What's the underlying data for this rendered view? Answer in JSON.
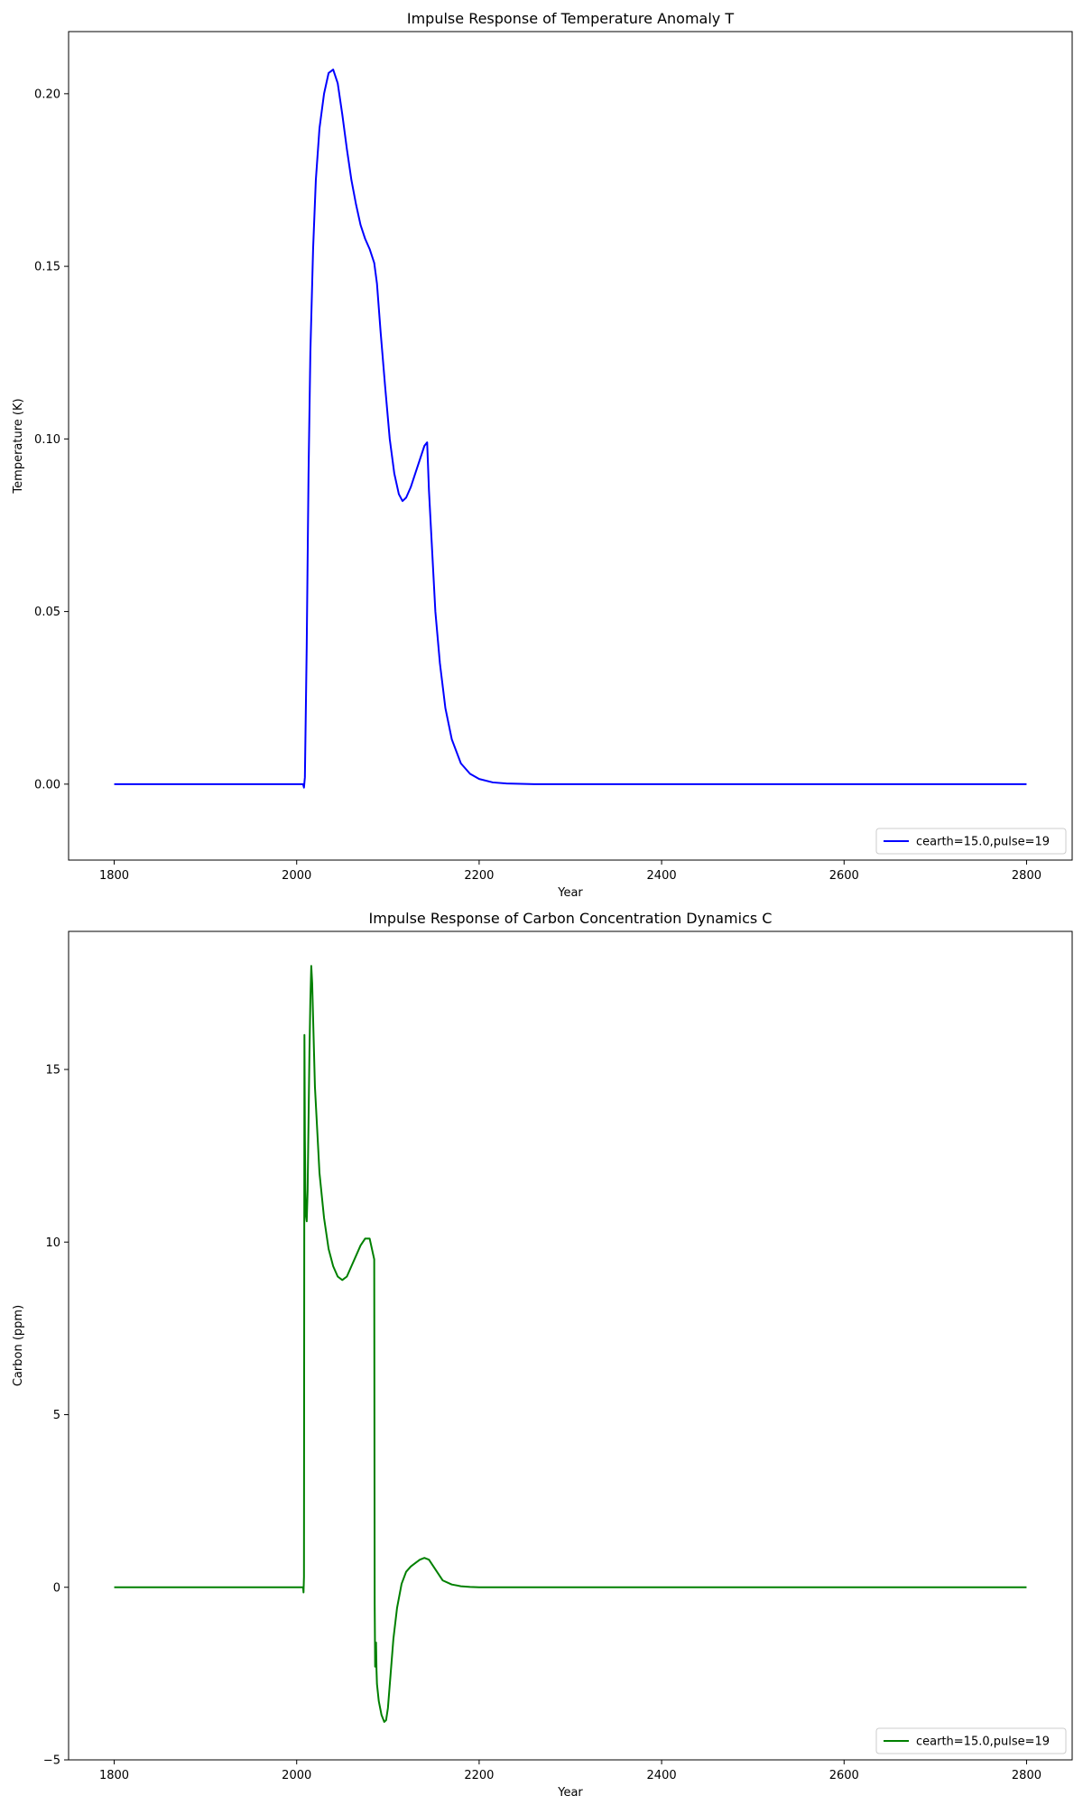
{
  "chart_data": [
    {
      "type": "line",
      "title": "Impulse Response of Temperature Anomaly T",
      "xlabel": "Year",
      "ylabel": "Temperature (K)",
      "xlim": [
        1750,
        2850
      ],
      "ylim": [
        -0.022,
        0.218
      ],
      "xticks": [
        1800,
        2000,
        2200,
        2400,
        2600,
        2800
      ],
      "xtick_labels": [
        "1800",
        "2000",
        "2200",
        "2400",
        "2600",
        "2800"
      ],
      "yticks": [
        0.0,
        0.05,
        0.1,
        0.15,
        0.2
      ],
      "ytick_labels": [
        "0.00",
        "0.05",
        "0.10",
        "0.15",
        "0.20"
      ],
      "legend_position": "lower-right",
      "series": [
        {
          "name": "cearth=15.0,pulse=19",
          "color": "#0000ff",
          "x": [
            1800,
            2000,
            2007,
            2008,
            2009,
            2011,
            2013,
            2015,
            2018,
            2021,
            2025,
            2030,
            2035,
            2040,
            2045,
            2050,
            2055,
            2060,
            2065,
            2070,
            2075,
            2080,
            2085,
            2088,
            2092,
            2097,
            2102,
            2107,
            2112,
            2116,
            2120,
            2125,
            2130,
            2135,
            2140,
            2143,
            2145,
            2148,
            2152,
            2157,
            2163,
            2170,
            2180,
            2190,
            2200,
            2215,
            2230,
            2260,
            2300,
            2400,
            2600,
            2800
          ],
          "y": [
            0.0,
            0.0,
            0.0,
            -0.001,
            0.002,
            0.04,
            0.09,
            0.125,
            0.155,
            0.175,
            0.19,
            0.2,
            0.206,
            0.207,
            0.203,
            0.194,
            0.184,
            0.175,
            0.168,
            0.162,
            0.158,
            0.155,
            0.151,
            0.145,
            0.131,
            0.115,
            0.1,
            0.09,
            0.084,
            0.082,
            0.083,
            0.086,
            0.09,
            0.094,
            0.098,
            0.099,
            0.085,
            0.07,
            0.05,
            0.035,
            0.022,
            0.013,
            0.006,
            0.003,
            0.0015,
            0.0005,
            0.0002,
            0.0,
            0.0,
            0.0,
            0.0,
            0.0
          ]
        }
      ]
    },
    {
      "type": "line",
      "title": "Impulse Response of Carbon Concentration Dynamics C",
      "xlabel": "Year",
      "ylabel": "Carbon (ppm)",
      "xlim": [
        1750,
        2850
      ],
      "ylim": [
        -5.0,
        19.0
      ],
      "xticks": [
        1800,
        2000,
        2200,
        2400,
        2600,
        2800
      ],
      "xtick_labels": [
        "1800",
        "2000",
        "2200",
        "2400",
        "2600",
        "2800"
      ],
      "yticks": [
        -5,
        0,
        5,
        10,
        15
      ],
      "ytick_labels": [
        "−5",
        "0",
        "5",
        "10",
        "15"
      ],
      "legend_position": "lower-right",
      "series": [
        {
          "name": "cearth=15.0,pulse=19",
          "color": "#008000",
          "x": [
            1800,
            2000,
            2007,
            2007.5,
            2008,
            2008.5,
            2009,
            2009.5,
            2010,
            2011,
            2012,
            2013,
            2014,
            2015,
            2016,
            2017,
            2018,
            2019,
            2020,
            2022,
            2025,
            2030,
            2035,
            2040,
            2045,
            2050,
            2055,
            2060,
            2065,
            2070,
            2075,
            2080,
            2085,
            2085.5,
            2086,
            2086.5,
            2087,
            2087.5,
            2088,
            2090,
            2093,
            2096,
            2098,
            2100,
            2103,
            2106,
            2110,
            2115,
            2120,
            2125,
            2130,
            2135,
            2140,
            2145,
            2150,
            2155,
            2160,
            2170,
            2180,
            2190,
            2200,
            2220,
            2250,
            2300,
            2400,
            2600,
            2800
          ],
          "y": [
            0,
            0,
            0,
            -0.15,
            0.3,
            16.0,
            13.0,
            11.5,
            10.8,
            10.6,
            11.5,
            13.5,
            15.5,
            17.0,
            18.0,
            17.5,
            16.5,
            15.5,
            14.5,
            13.5,
            12.0,
            10.7,
            9.8,
            9.3,
            9.0,
            8.9,
            9.0,
            9.3,
            9.6,
            9.9,
            10.1,
            10.1,
            9.5,
            -0.5,
            -2.3,
            -1.8,
            -1.6,
            -2.4,
            -2.8,
            -3.3,
            -3.7,
            -3.9,
            -3.85,
            -3.5,
            -2.5,
            -1.5,
            -0.6,
            0.1,
            0.45,
            0.6,
            0.7,
            0.8,
            0.85,
            0.8,
            0.6,
            0.4,
            0.2,
            0.08,
            0.03,
            0.01,
            0.0,
            0.0,
            0.0,
            0.0,
            0.0,
            0.0,
            0.0
          ]
        }
      ]
    }
  ]
}
